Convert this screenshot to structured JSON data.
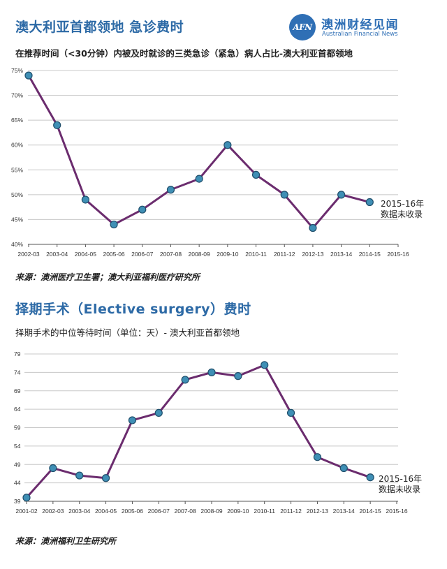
{
  "header": {
    "title": "澳大利亚首都领地 急诊费时",
    "brand_logo": "AFN",
    "brand_cn": "澳洲财经见闻",
    "brand_en": "Australian Financial News"
  },
  "section2": {
    "title": "择期手术（Elective surgery）费时"
  },
  "colors": {
    "line": "#6b2c6e",
    "marker": "#3f8fb5",
    "title": "#2d6aa6"
  },
  "chart_data": [
    {
      "type": "line",
      "title": "在推荐时间（<30分钟）内被及时就诊的三类急诊（紧急）病人占比-澳大利亚首都领地",
      "categories": [
        "2002-03",
        "2003-04",
        "2004-05",
        "2005-06",
        "2006-07",
        "2007-08",
        "2008-09",
        "2009-10",
        "2010-11",
        "2011-12",
        "2012-13",
        "2013-14",
        "2014-15",
        "2015-16"
      ],
      "values": [
        74,
        64,
        49,
        44,
        47,
        51,
        53.2,
        60,
        54,
        50,
        43.3,
        50,
        48.5,
        null
      ],
      "yticks": [
        "75%",
        "70%",
        "65%",
        "60%",
        "55%",
        "50%",
        "45%",
        "40%"
      ],
      "ylim": [
        40,
        75
      ],
      "annotation": [
        "2015-16年",
        "数据未收录"
      ],
      "source": "来源：澳洲医疗卫生署；澳大利亚福利医疗研究所"
    },
    {
      "type": "line",
      "title": "择期手术的中位等待时间（单位：天）- 澳大利亚首都领地",
      "categories": [
        "2001-02",
        "2002-03",
        "2003-04",
        "2004-05",
        "2005-06",
        "2006-07",
        "2007-08",
        "2008-09",
        "2009-10",
        "2010-11",
        "2011-12",
        "2012-13",
        "2013-14",
        "2014-15",
        "2015-16"
      ],
      "values": [
        40,
        48,
        46,
        45.3,
        61,
        63,
        72,
        74,
        73,
        76,
        63,
        51,
        48,
        45.5,
        null
      ],
      "yticks": [
        "79",
        "74",
        "69",
        "64",
        "59",
        "54",
        "49",
        "44",
        "39"
      ],
      "ylim": [
        39,
        79
      ],
      "annotation": [
        "2015-16年",
        "数据未收录"
      ],
      "source": "来源：澳洲福利卫生研究所"
    }
  ]
}
